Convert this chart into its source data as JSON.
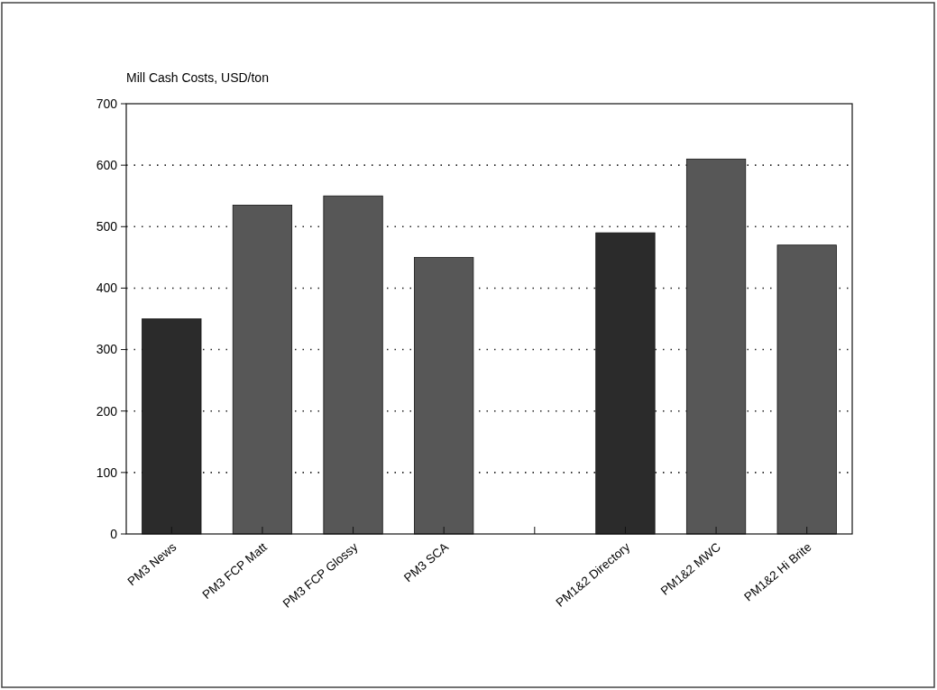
{
  "chart_data": {
    "type": "bar",
    "ylabel": "Mill Cash Costs, USD/ton",
    "categories": [
      "PM3 News",
      "PM3 FCP Matt",
      "PM3 FCP Glossy",
      "PM3 SCA",
      null,
      "PM1&2 Directory",
      "PM1&2 MWC",
      "PM1&2 Hi Brite"
    ],
    "values": [
      350,
      535,
      550,
      450,
      null,
      490,
      610,
      470
    ],
    "colors": [
      "#2b2b2b",
      "#575757",
      "#575757",
      "#575757",
      null,
      "#2b2b2b",
      "#575757",
      "#575757"
    ],
    "ylim": [
      0,
      700
    ],
    "yticks": [
      0,
      100,
      200,
      300,
      400,
      500,
      600,
      700
    ],
    "grid": "y"
  }
}
